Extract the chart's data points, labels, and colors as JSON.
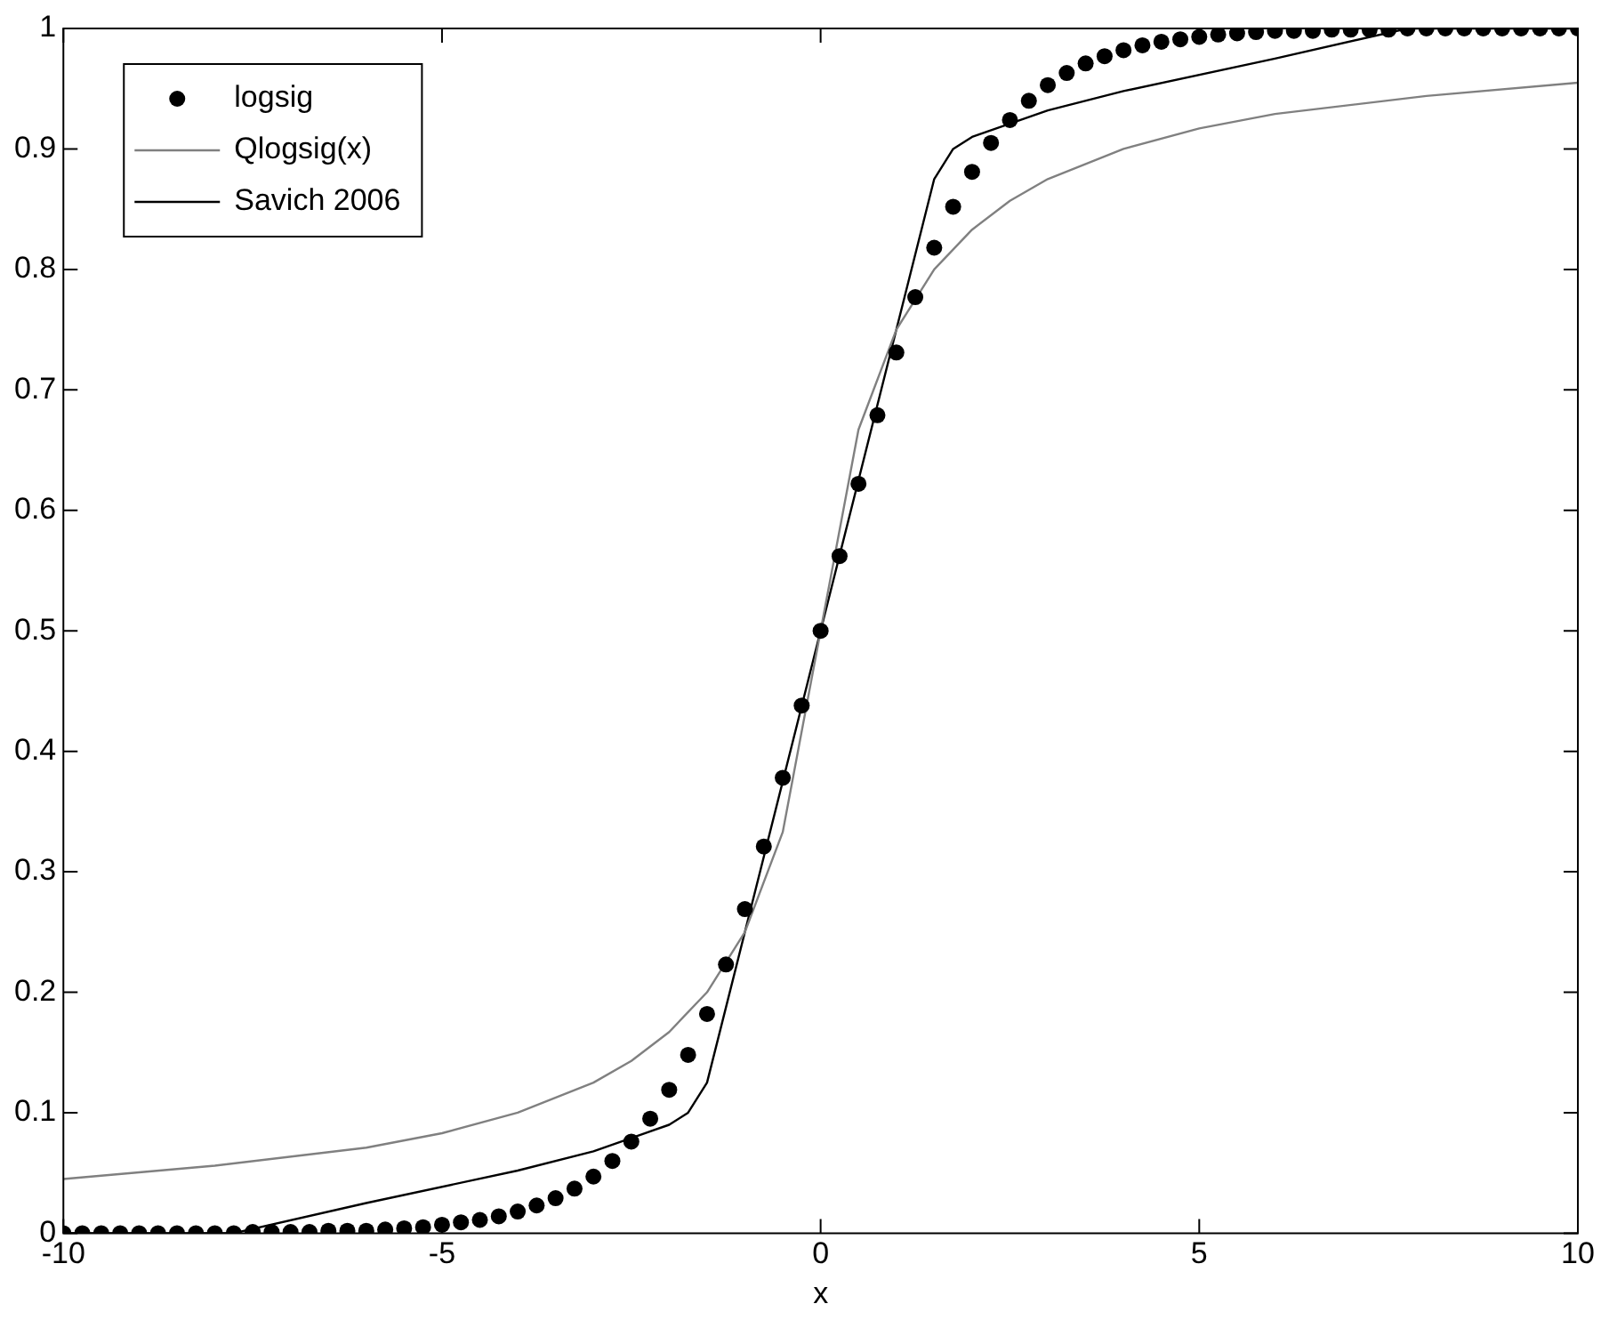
{
  "chart_data": {
    "type": "line",
    "xlabel": "x",
    "xlim": [
      -10,
      10
    ],
    "xticks": [
      -10,
      -5,
      0,
      5,
      10
    ],
    "ylim": [
      0,
      1
    ],
    "yticks": [
      0,
      0.1,
      0.2,
      0.3,
      0.4,
      0.5,
      0.6,
      0.7,
      0.8,
      0.9,
      1
    ],
    "grid": false,
    "legend": "top left",
    "series": [
      {
        "name": "logsig",
        "type": "scatter",
        "marker": "circle",
        "color": "#000000",
        "x": [
          -10,
          -9.75,
          -9.5,
          -9.25,
          -9,
          -8.75,
          -8.5,
          -8.25,
          -8,
          -7.75,
          -7.5,
          -7.25,
          -7,
          -6.75,
          -6.5,
          -6.25,
          -6,
          -5.75,
          -5.5,
          -5.25,
          -5,
          -4.75,
          -4.5,
          -4.25,
          -4,
          -3.75,
          -3.5,
          -3.25,
          -3,
          -2.75,
          -2.5,
          -2.25,
          -2,
          -1.75,
          -1.5,
          -1.25,
          -1,
          -0.75,
          -0.5,
          -0.25,
          0,
          0.25,
          0.5,
          0.75,
          1,
          1.25,
          1.5,
          1.75,
          2,
          2.25,
          2.5,
          2.75,
          3,
          3.25,
          3.5,
          3.75,
          4,
          4.25,
          4.5,
          4.75,
          5,
          5.25,
          5.5,
          5.75,
          6,
          6.25,
          6.5,
          6.75,
          7,
          7.25,
          7.5,
          7.75,
          8,
          8.25,
          8.5,
          8.75,
          9,
          9.25,
          9.5,
          9.75,
          10
        ],
        "values": [
          0,
          0,
          0,
          0,
          0,
          0,
          0,
          0,
          0,
          0,
          0.001,
          0.001,
          0.001,
          0.001,
          0.002,
          0.002,
          0.002,
          0.003,
          0.004,
          0.005,
          0.007,
          0.009,
          0.011,
          0.014,
          0.018,
          0.023,
          0.029,
          0.037,
          0.047,
          0.06,
          0.076,
          0.095,
          0.119,
          0.148,
          0.182,
          0.223,
          0.269,
          0.321,
          0.378,
          0.438,
          0.5,
          0.562,
          0.622,
          0.679,
          0.731,
          0.777,
          0.818,
          0.852,
          0.881,
          0.905,
          0.924,
          0.94,
          0.953,
          0.963,
          0.971,
          0.977,
          0.982,
          0.986,
          0.989,
          0.991,
          0.993,
          0.995,
          0.996,
          0.997,
          0.998,
          0.998,
          0.998,
          0.999,
          0.999,
          0.999,
          0.999,
          1,
          1,
          1,
          1,
          1,
          1,
          1,
          1,
          1,
          1
        ]
      },
      {
        "name": "Qlogsig(x)",
        "type": "line",
        "marker": "none",
        "color": "#808080",
        "x": [
          -10,
          -8,
          -6,
          -5,
          -4,
          -3,
          -2.5,
          -2,
          -1.5,
          -1,
          -0.5,
          0,
          0.5,
          1,
          1.5,
          2,
          2.5,
          3,
          4,
          5,
          6,
          8,
          10
        ],
        "values": [
          0.045,
          0.056,
          0.071,
          0.083,
          0.1,
          0.125,
          0.143,
          0.167,
          0.2,
          0.25,
          0.333,
          0.5,
          0.667,
          0.75,
          0.8,
          0.833,
          0.857,
          0.875,
          0.9,
          0.917,
          0.929,
          0.944,
          0.955
        ]
      },
      {
        "name": "Savich 2006",
        "type": "line",
        "marker": "none",
        "color": "#000000",
        "x": [
          -10,
          -7.75,
          -6,
          -4,
          -3,
          -2,
          -1.75,
          -1.5,
          1.5,
          1.75,
          2,
          3,
          4,
          6,
          7.75,
          10
        ],
        "values": [
          0,
          0,
          0.025,
          0.052,
          0.068,
          0.09,
          0.1,
          0.125,
          0.875,
          0.9,
          0.91,
          0.932,
          0.948,
          0.975,
          1,
          1
        ]
      }
    ]
  }
}
